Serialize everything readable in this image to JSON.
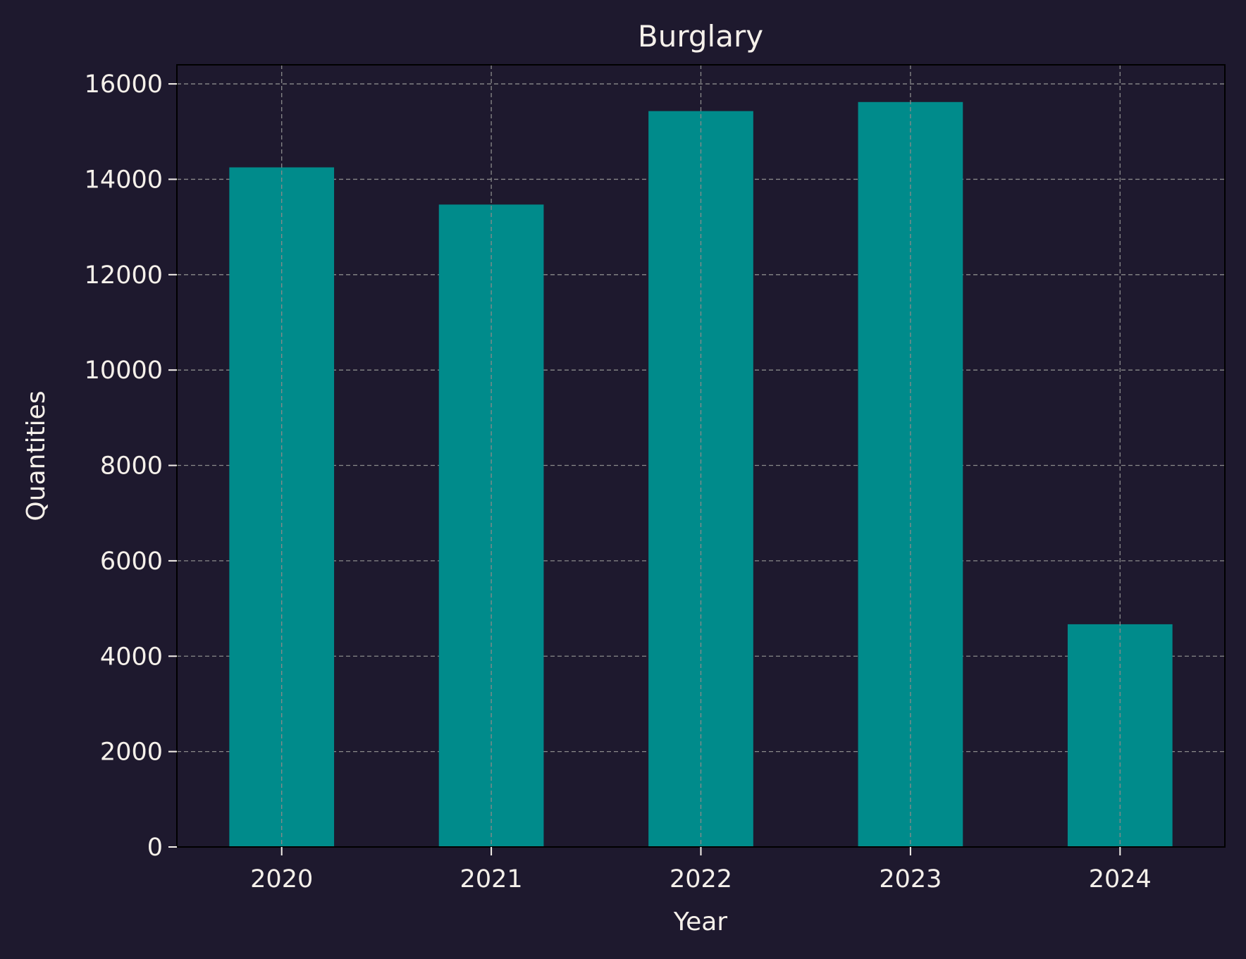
{
  "chart_data": {
    "type": "bar",
    "title": "Burglary",
    "xlabel": "Year",
    "ylabel": "Quantities",
    "categories": [
      "2020",
      "2021",
      "2022",
      "2023",
      "2024"
    ],
    "values": [
      14250,
      13470,
      15430,
      15620,
      4670
    ],
    "ylim": [
      0,
      16400
    ],
    "yticks": [
      0,
      2000,
      4000,
      6000,
      8000,
      10000,
      12000,
      14000,
      16000
    ],
    "ytick_labels": [
      "0",
      "2000",
      "4000",
      "6000",
      "8000",
      "10000",
      "12000",
      "14000",
      "16000"
    ],
    "grid": true,
    "colors": {
      "background": "#1e192e",
      "bar": "#008b8b",
      "text": "#f5f0ea",
      "grid": "#8a8a8a",
      "axes": "#000000"
    }
  }
}
